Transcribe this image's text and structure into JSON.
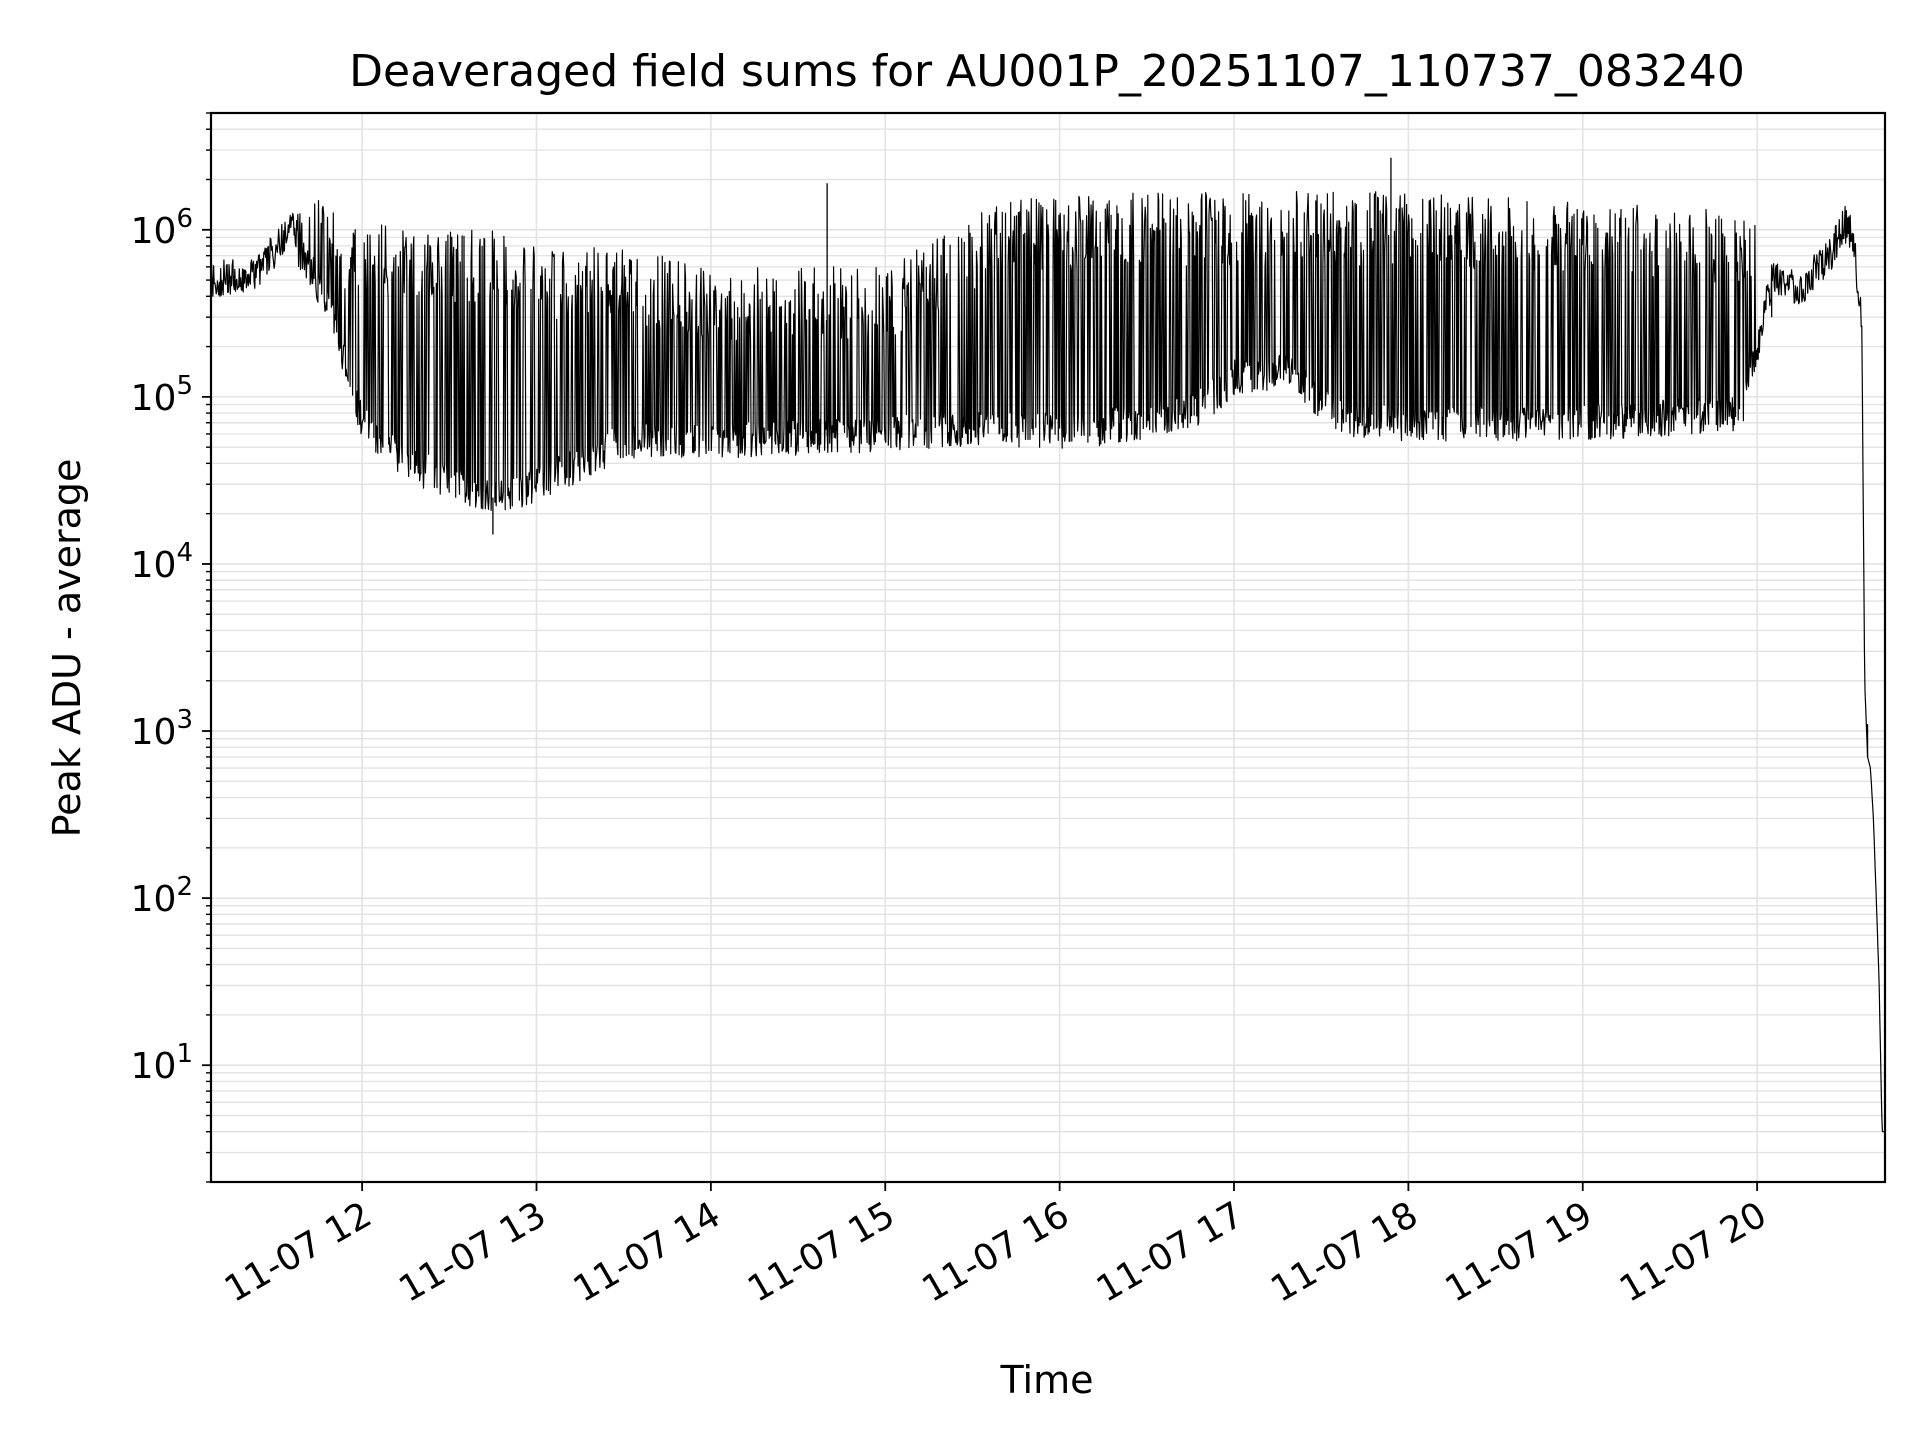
{
  "chart_data": {
    "type": "line",
    "title": "Deaveraged field sums for AU001P_20251107_110737_083240",
    "xlabel": "Time",
    "ylabel": "Peak ADU - average",
    "yscale": "log",
    "ylim": [
      2,
      5000000
    ],
    "xlim": [
      "11-07 11:08",
      "11-07 20:44"
    ],
    "grid": true,
    "line_color": "#000000",
    "grid_color": "#e3e3e3",
    "xticks": [
      {
        "x": "11-07 12:00",
        "label": "11-07 12"
      },
      {
        "x": "11-07 13:00",
        "label": "11-07 13"
      },
      {
        "x": "11-07 14:00",
        "label": "11-07 14"
      },
      {
        "x": "11-07 15:00",
        "label": "11-07 15"
      },
      {
        "x": "11-07 16:00",
        "label": "11-07 16"
      },
      {
        "x": "11-07 17:00",
        "label": "11-07 17"
      },
      {
        "x": "11-07 18:00",
        "label": "11-07 18"
      },
      {
        "x": "11-07 19:00",
        "label": "11-07 19"
      },
      {
        "x": "11-07 20:00",
        "label": "11-07 20"
      }
    ],
    "yticks": [
      {
        "value": 10,
        "base": "10",
        "exp": "1"
      },
      {
        "value": 100,
        "base": "10",
        "exp": "2"
      },
      {
        "value": 1000,
        "base": "10",
        "exp": "3"
      },
      {
        "value": 10000,
        "base": "10",
        "exp": "4"
      },
      {
        "value": 100000,
        "base": "10",
        "exp": "5"
      },
      {
        "value": 1000000,
        "base": "10",
        "exp": "6"
      }
    ],
    "series": [
      {
        "baseline_envelope": [
          {
            "x": "11-07 11:08",
            "y": 500000
          },
          {
            "x": "11-07 11:24",
            "y": 550000
          },
          {
            "x": "11-07 11:35",
            "y": 1000000
          },
          {
            "x": "11-07 11:50",
            "y": 300000
          },
          {
            "x": "11-07 12:00",
            "y": 70000
          },
          {
            "x": "11-07 12:15",
            "y": 40000
          },
          {
            "x": "11-07 12:30",
            "y": 32000
          },
          {
            "x": "11-07 12:45",
            "y": 25000
          },
          {
            "x": "11-07 13:00",
            "y": 30000
          },
          {
            "x": "11-07 13:15",
            "y": 40000
          },
          {
            "x": "11-07 13:30",
            "y": 55000
          },
          {
            "x": "11-07 14:00",
            "y": 55000
          },
          {
            "x": "11-07 15:00",
            "y": 60000
          },
          {
            "x": "11-07 15:30",
            "y": 65000
          },
          {
            "x": "11-07 16:00",
            "y": 62000
          },
          {
            "x": "11-07 16:30",
            "y": 70000
          },
          {
            "x": "11-07 16:50",
            "y": 90000
          },
          {
            "x": "11-07 17:00",
            "y": 130000
          },
          {
            "x": "11-07 17:20",
            "y": 140000
          },
          {
            "x": "11-07 17:35",
            "y": 75000
          },
          {
            "x": "11-07 18:00",
            "y": 70000
          },
          {
            "x": "11-07 19:00",
            "y": 70000
          },
          {
            "x": "11-07 19:55",
            "y": 80000
          },
          {
            "x": "11-07 20:05",
            "y": 500000
          },
          {
            "x": "11-07 20:15",
            "y": 450000
          },
          {
            "x": "11-07 20:25",
            "y": 700000
          },
          {
            "x": "11-07 20:30",
            "y": 1100000
          },
          {
            "x": "11-07 20:33",
            "y": 900000
          },
          {
            "x": "11-07 20:36",
            "y": 300000
          },
          {
            "x": "11-07 20:37",
            "y": 2000
          },
          {
            "x": "11-07 20:38",
            "y": 700
          },
          {
            "x": "11-07 20:39",
            "y": 600
          },
          {
            "x": "11-07 20:40",
            "y": 300
          },
          {
            "x": "11-07 20:41",
            "y": 100
          },
          {
            "x": "11-07 20:42",
            "y": 30
          },
          {
            "x": "11-07 20:43",
            "y": 4
          },
          {
            "x": "11-07 20:44",
            "y": 4
          }
        ],
        "spike_envelope": [
          {
            "x": "11-07 11:35",
            "y": 1300000
          },
          {
            "x": "11-07 11:45",
            "y": 1500000
          },
          {
            "x": "11-07 12:00",
            "y": 1100000
          },
          {
            "x": "11-07 12:45",
            "y": 1000000
          },
          {
            "x": "11-07 13:00",
            "y": 800000
          },
          {
            "x": "11-07 13:30",
            "y": 800000
          },
          {
            "x": "11-07 14:00",
            "y": 600000
          },
          {
            "x": "11-07 15:00",
            "y": 600000
          },
          {
            "x": "11-07 15:40",
            "y": 1500000
          },
          {
            "x": "11-07 16:30",
            "y": 1700000
          },
          {
            "x": "11-07 18:00",
            "y": 1700000
          },
          {
            "x": "11-07 19:00",
            "y": 1500000
          },
          {
            "x": "11-07 20:00",
            "y": 1300000
          }
        ],
        "notable_points": [
          {
            "x": "11-07 12:45",
            "y": 15000
          },
          {
            "x": "11-07 14:40",
            "y": 1900000
          },
          {
            "x": "11-07 17:54",
            "y": 2700000
          },
          {
            "x": "11-07 20:05",
            "y": 300000
          },
          {
            "x": "11-07 20:38",
            "y": 1100
          }
        ]
      }
    ]
  }
}
